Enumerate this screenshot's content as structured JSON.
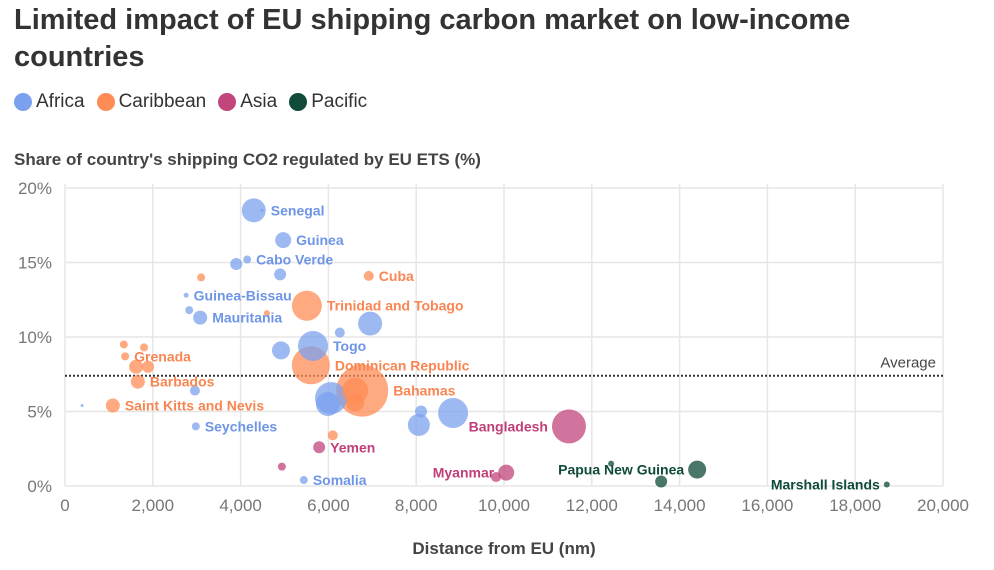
{
  "chart_data": {
    "type": "scatter",
    "title": "Limited impact of EU shipping carbon market on low-income countries",
    "ylabel": "Share of country's shipping CO2 regulated by EU ETS (%)",
    "xlabel": "Distance from EU (nm)",
    "xlim": [
      0,
      20000
    ],
    "ylim": [
      0,
      20
    ],
    "x_ticks": [
      "0",
      "2,000",
      "4,000",
      "6,000",
      "8,000",
      "10,000",
      "12,000",
      "14,000",
      "16,000",
      "18,000",
      "20,000"
    ],
    "y_ticks": [
      "0%",
      "5%",
      "10%",
      "15%",
      "20%"
    ],
    "grid": true,
    "legend_position": "top-left",
    "average": {
      "label": "Average",
      "value": 7.4
    },
    "series": [
      {
        "name": "Africa",
        "color": "#7BA1EE",
        "label_color": "#6E95E6",
        "points": [
          {
            "x": 4300,
            "y": 18.5,
            "size": 12,
            "label": "Senegal"
          },
          {
            "x": 4490,
            "y": 18.5,
            "size": 1.5
          },
          {
            "x": 4970,
            "y": 16.5,
            "size": 8,
            "label": "Guinea"
          },
          {
            "x": 3900,
            "y": 14.9,
            "size": 6
          },
          {
            "x": 4150,
            "y": 15.2,
            "size": 4,
            "label": "Cabo Verde"
          },
          {
            "x": 4900,
            "y": 14.2,
            "size": 6
          },
          {
            "x": 2760,
            "y": 12.8,
            "size": 2.5,
            "label": "Guinea-Bissau"
          },
          {
            "x": 2830,
            "y": 11.8,
            "size": 4
          },
          {
            "x": 3080,
            "y": 11.3,
            "size": 7,
            "label": "Mauritania"
          },
          {
            "x": 6260,
            "y": 10.3,
            "size": 5
          },
          {
            "x": 6950,
            "y": 10.9,
            "size": 12
          },
          {
            "x": 4920,
            "y": 9.1,
            "size": 9
          },
          {
            "x": 5650,
            "y": 9.4,
            "size": 15,
            "label": "Togo"
          },
          {
            "x": 2960,
            "y": 6.4,
            "size": 5
          },
          {
            "x": 390,
            "y": 5.4,
            "size": 1.5
          },
          {
            "x": 2980,
            "y": 4.0,
            "size": 4,
            "label": "Seychelles"
          },
          {
            "x": 6060,
            "y": 5.9,
            "size": 16
          },
          {
            "x": 5990,
            "y": 5.5,
            "size": 12
          },
          {
            "x": 8110,
            "y": 5.0,
            "size": 6
          },
          {
            "x": 8060,
            "y": 4.1,
            "size": 11
          },
          {
            "x": 8840,
            "y": 4.9,
            "size": 15
          },
          {
            "x": 5440,
            "y": 0.4,
            "size": 4,
            "label": "Somalia"
          }
        ]
      },
      {
        "name": "Caribbean",
        "color": "#FF8C55",
        "label_color": "#F98652",
        "points": [
          {
            "x": 3100,
            "y": 14.0,
            "size": 4
          },
          {
            "x": 6920,
            "y": 14.1,
            "size": 5,
            "label": "Cuba"
          },
          {
            "x": 4600,
            "y": 11.6,
            "size": 3
          },
          {
            "x": 5510,
            "y": 12.1,
            "size": 15,
            "label": "Trinidad and Tobago"
          },
          {
            "x": 1340,
            "y": 9.5,
            "size": 4
          },
          {
            "x": 1800,
            "y": 9.3,
            "size": 4
          },
          {
            "x": 1370,
            "y": 8.7,
            "size": 4,
            "label": "Grenada"
          },
          {
            "x": 1620,
            "y": 8.0,
            "size": 7
          },
          {
            "x": 1890,
            "y": 8.0,
            "size": 6
          },
          {
            "x": 1660,
            "y": 7.0,
            "size": 7,
            "label": "Barbados"
          },
          {
            "x": 1090,
            "y": 5.4,
            "size": 7,
            "label": "Saint Kitts and Nevis"
          },
          {
            "x": 5600,
            "y": 8.1,
            "size": 19,
            "label": "Dominican Republic"
          },
          {
            "x": 6770,
            "y": 6.4,
            "size": 26,
            "label": "Bahamas"
          },
          {
            "x": 6610,
            "y": 6.4,
            "size": 13
          },
          {
            "x": 6610,
            "y": 5.6,
            "size": 9
          },
          {
            "x": 6100,
            "y": 3.4,
            "size": 5
          }
        ]
      },
      {
        "name": "Asia",
        "color": "#C2457C",
        "label_color": "#C03F78",
        "points": [
          {
            "x": 5790,
            "y": 2.6,
            "size": 6,
            "label": "Yemen"
          },
          {
            "x": 4940,
            "y": 1.3,
            "size": 4
          },
          {
            "x": 11480,
            "y": 4.0,
            "size": 17,
            "label": "Bangladesh"
          },
          {
            "x": 10050,
            "y": 0.9,
            "size": 8,
            "label": "Myanmar"
          },
          {
            "x": 9820,
            "y": 0.6,
            "size": 5
          }
        ]
      },
      {
        "name": "Pacific",
        "color": "#0F4A3A",
        "label_color": "#0F4A3A",
        "points": [
          {
            "x": 12440,
            "y": 1.5,
            "size": 3
          },
          {
            "x": 14400,
            "y": 1.1,
            "size": 9,
            "label": "Papua New Guinea"
          },
          {
            "x": 13580,
            "y": 0.3,
            "size": 6
          },
          {
            "x": 18720,
            "y": 0.1,
            "size": 3,
            "label": "Marshall Islands"
          }
        ]
      }
    ]
  }
}
